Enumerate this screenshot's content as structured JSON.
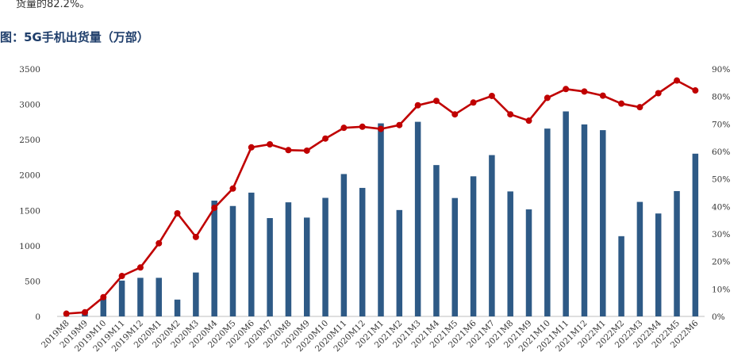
{
  "intro_text": "货量的82.2%。",
  "figure_title": "图：5G手机出货量（万部）",
  "colors": {
    "bar": "#2E5A86",
    "line": "#C00000",
    "title": "#1F3E6B"
  },
  "chart_data": {
    "type": "bar+line",
    "categories": [
      "2019M8",
      "2019M9",
      "2019M10",
      "2019M11",
      "2019M12",
      "2020M1",
      "2020M2",
      "2020M3",
      "2020M4",
      "2020M5",
      "2020M6",
      "2020M7",
      "2020M8",
      "2020M9",
      "2020M10",
      "2020M11",
      "2020M12",
      "2021M1",
      "2021M2",
      "2021M3",
      "2021M4",
      "2021M5",
      "2021M6",
      "2021M7",
      "2021M8",
      "2021M9",
      "2021M10",
      "2021M11",
      "2021M12",
      "2022M1",
      "2022M2",
      "2022M3",
      "2022M4",
      "2022M5",
      "2022M6"
    ],
    "series": [
      {
        "type": "bar",
        "axis": "left",
        "values": [
          7,
          66,
          251,
          507,
          546,
          546,
          238,
          621,
          1638,
          1562,
          1751,
          1391,
          1614,
          1398,
          1677,
          2014,
          1818,
          2731,
          1505,
          2753,
          2141,
          1675,
          1982,
          2282,
          1768,
          1514,
          2657,
          2900,
          2716,
          2635,
          1135,
          1620,
          1456,
          1773,
          2302
        ]
      },
      {
        "type": "line",
        "axis": "right",
        "values": [
          0.01,
          0.015,
          0.07,
          0.147,
          0.178,
          0.266,
          0.375,
          0.289,
          0.395,
          0.465,
          0.615,
          0.626,
          0.605,
          0.603,
          0.647,
          0.686,
          0.69,
          0.682,
          0.696,
          0.768,
          0.784,
          0.735,
          0.778,
          0.802,
          0.735,
          0.712,
          0.795,
          0.827,
          0.818,
          0.803,
          0.774,
          0.761,
          0.812,
          0.858,
          0.822
        ]
      }
    ],
    "y_left": {
      "min": 0,
      "max": 3500,
      "ticks": [
        "0",
        "500",
        "1000",
        "1500",
        "2000",
        "2500",
        "3000",
        "3500"
      ]
    },
    "y_right": {
      "min": 0,
      "max": 0.9,
      "ticks": [
        "0%",
        "10%",
        "20%",
        "30%",
        "40%",
        "50%",
        "60%",
        "70%",
        "80%",
        "90%"
      ]
    },
    "grid": false,
    "legend": "none"
  }
}
